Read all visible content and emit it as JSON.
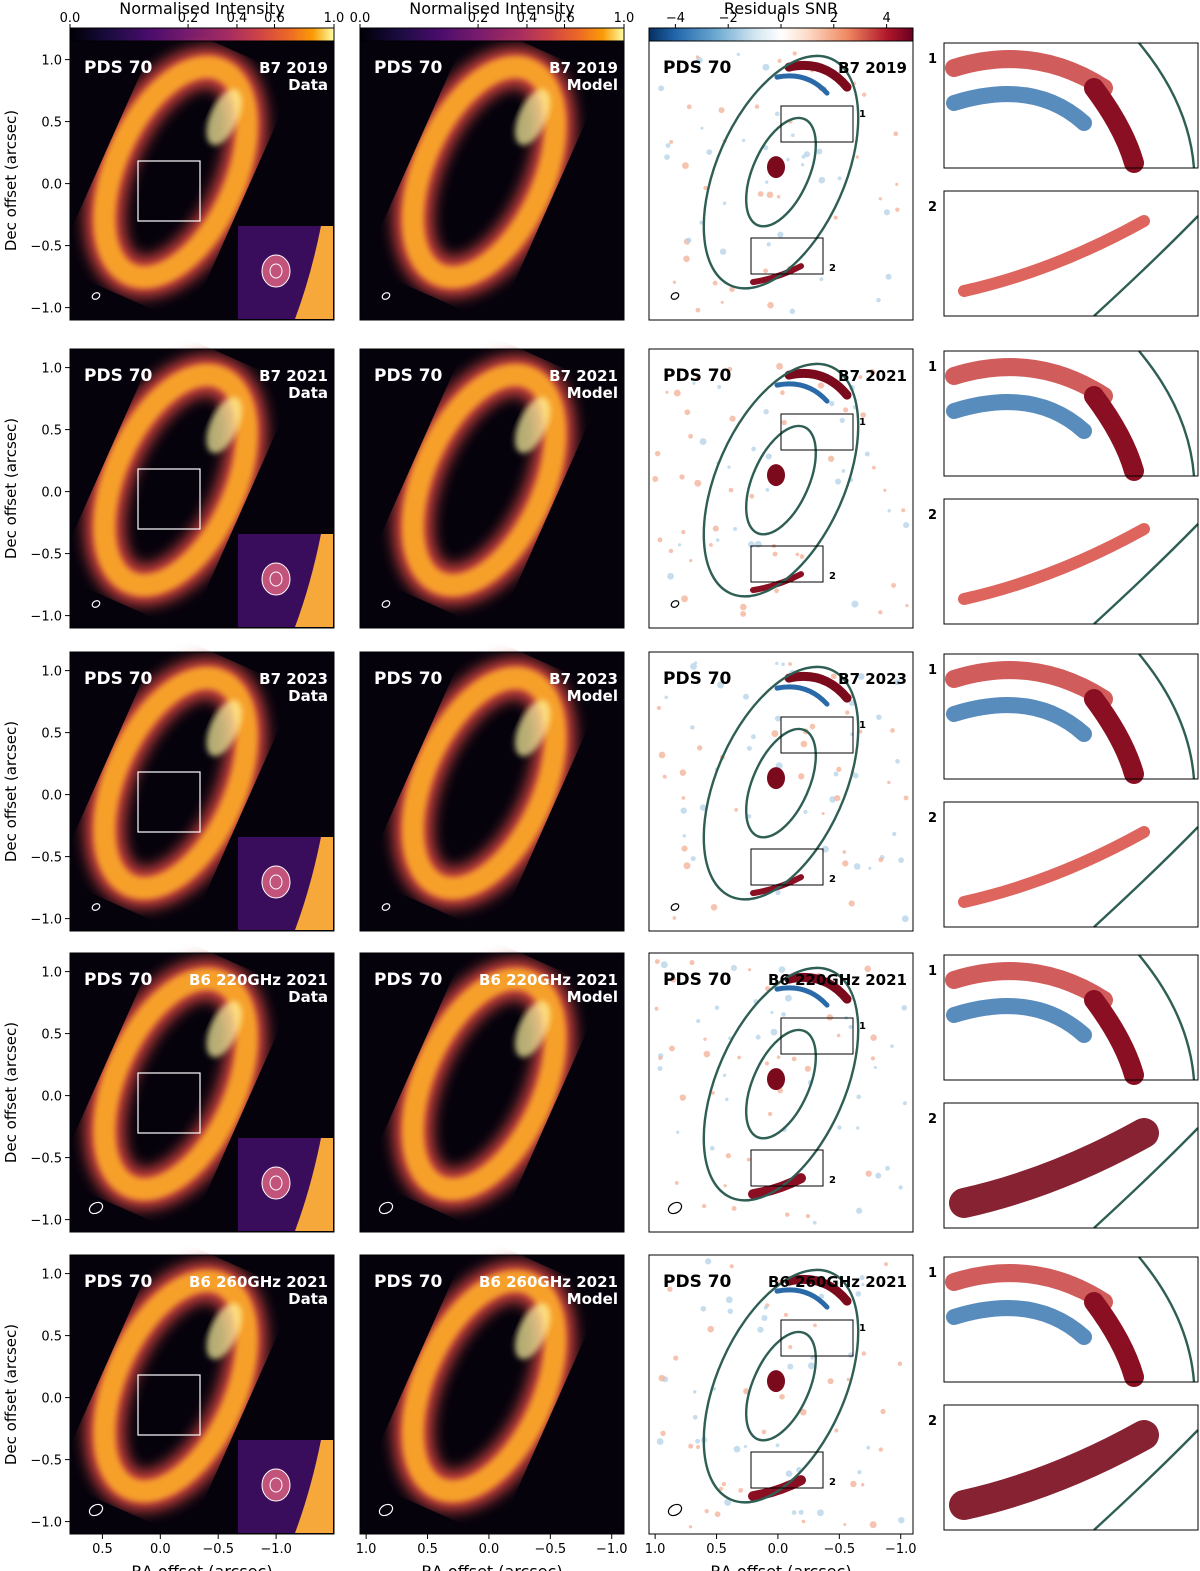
{
  "figure": {
    "colorbars": [
      {
        "label": "Normalised Intensity",
        "ticks": [
          "0.0",
          "0.2",
          "0.4",
          "0.6",
          "1.0"
        ],
        "tick_values": [
          0.0,
          0.2,
          0.4,
          0.6,
          1.0
        ],
        "scale": "power",
        "colormap": "inferno"
      },
      {
        "label": "Normalised Intensity",
        "ticks": [
          "0.0",
          "0.2",
          "0.4",
          "0.6",
          "1.0"
        ],
        "tick_values": [
          0.0,
          0.2,
          0.4,
          0.6,
          1.0
        ],
        "scale": "power",
        "colormap": "inferno"
      },
      {
        "label": "Residuals SNR",
        "ticks": [
          "−4",
          "−2",
          "0",
          "2",
          "4"
        ],
        "tick_values": [
          -4,
          -2,
          0,
          2,
          4
        ],
        "range": [
          -5,
          5
        ],
        "colormap": "RdBu_r"
      }
    ],
    "rows": [
      {
        "target": "PDS 70",
        "band": "B7 2019",
        "data_tag": "Data",
        "model_tag": "Model",
        "box_labels": [
          "1",
          "2"
        ]
      },
      {
        "target": "PDS 70",
        "band": "B7 2021",
        "data_tag": "Data",
        "model_tag": "Model",
        "box_labels": [
          "1",
          "2"
        ]
      },
      {
        "target": "PDS 70",
        "band": "B7 2023",
        "data_tag": "Data",
        "model_tag": "Model",
        "box_labels": [
          "1",
          "2"
        ]
      },
      {
        "target": "PDS 70",
        "band": "B6 220GHz 2021",
        "data_tag": "Data",
        "model_tag": "Model",
        "box_labels": [
          "1",
          "2"
        ]
      },
      {
        "target": "PDS 70",
        "band": "B6 260GHz 2021",
        "data_tag": "Data",
        "model_tag": "Model",
        "box_labels": [
          "1",
          "2"
        ]
      }
    ],
    "y_axis": {
      "label": "Dec offset  (arcsec)",
      "ticks": [
        "1.0",
        "0.5",
        "0.0",
        "−0.5",
        "−1.0"
      ],
      "tick_values": [
        1.0,
        0.5,
        0.0,
        -0.5,
        -1.0
      ]
    },
    "x_axis_col1": {
      "label": "RA offset  (arcsec)",
      "ticks": [
        "0.5",
        "0.0",
        "−0.5",
        "−1.0"
      ],
      "tick_values": [
        0.5,
        0.0,
        -0.5,
        -1.0
      ]
    },
    "x_axis_col2": {
      "label": "RA offset  (arcsec)",
      "ticks": [
        "1.0",
        "0.5",
        "0.0",
        "−0.5",
        "−1.0"
      ],
      "tick_values": [
        1.0,
        0.5,
        0.0,
        -0.5,
        -1.0
      ]
    },
    "x_axis_col3": {
      "label": "RA offset  (arcsec)",
      "ticks": [
        "1.0",
        "0.5",
        "0.0",
        "−0.5",
        "−1.0"
      ],
      "tick_values": [
        1.0,
        0.5,
        0.0,
        -0.5,
        -1.0
      ]
    }
  }
}
